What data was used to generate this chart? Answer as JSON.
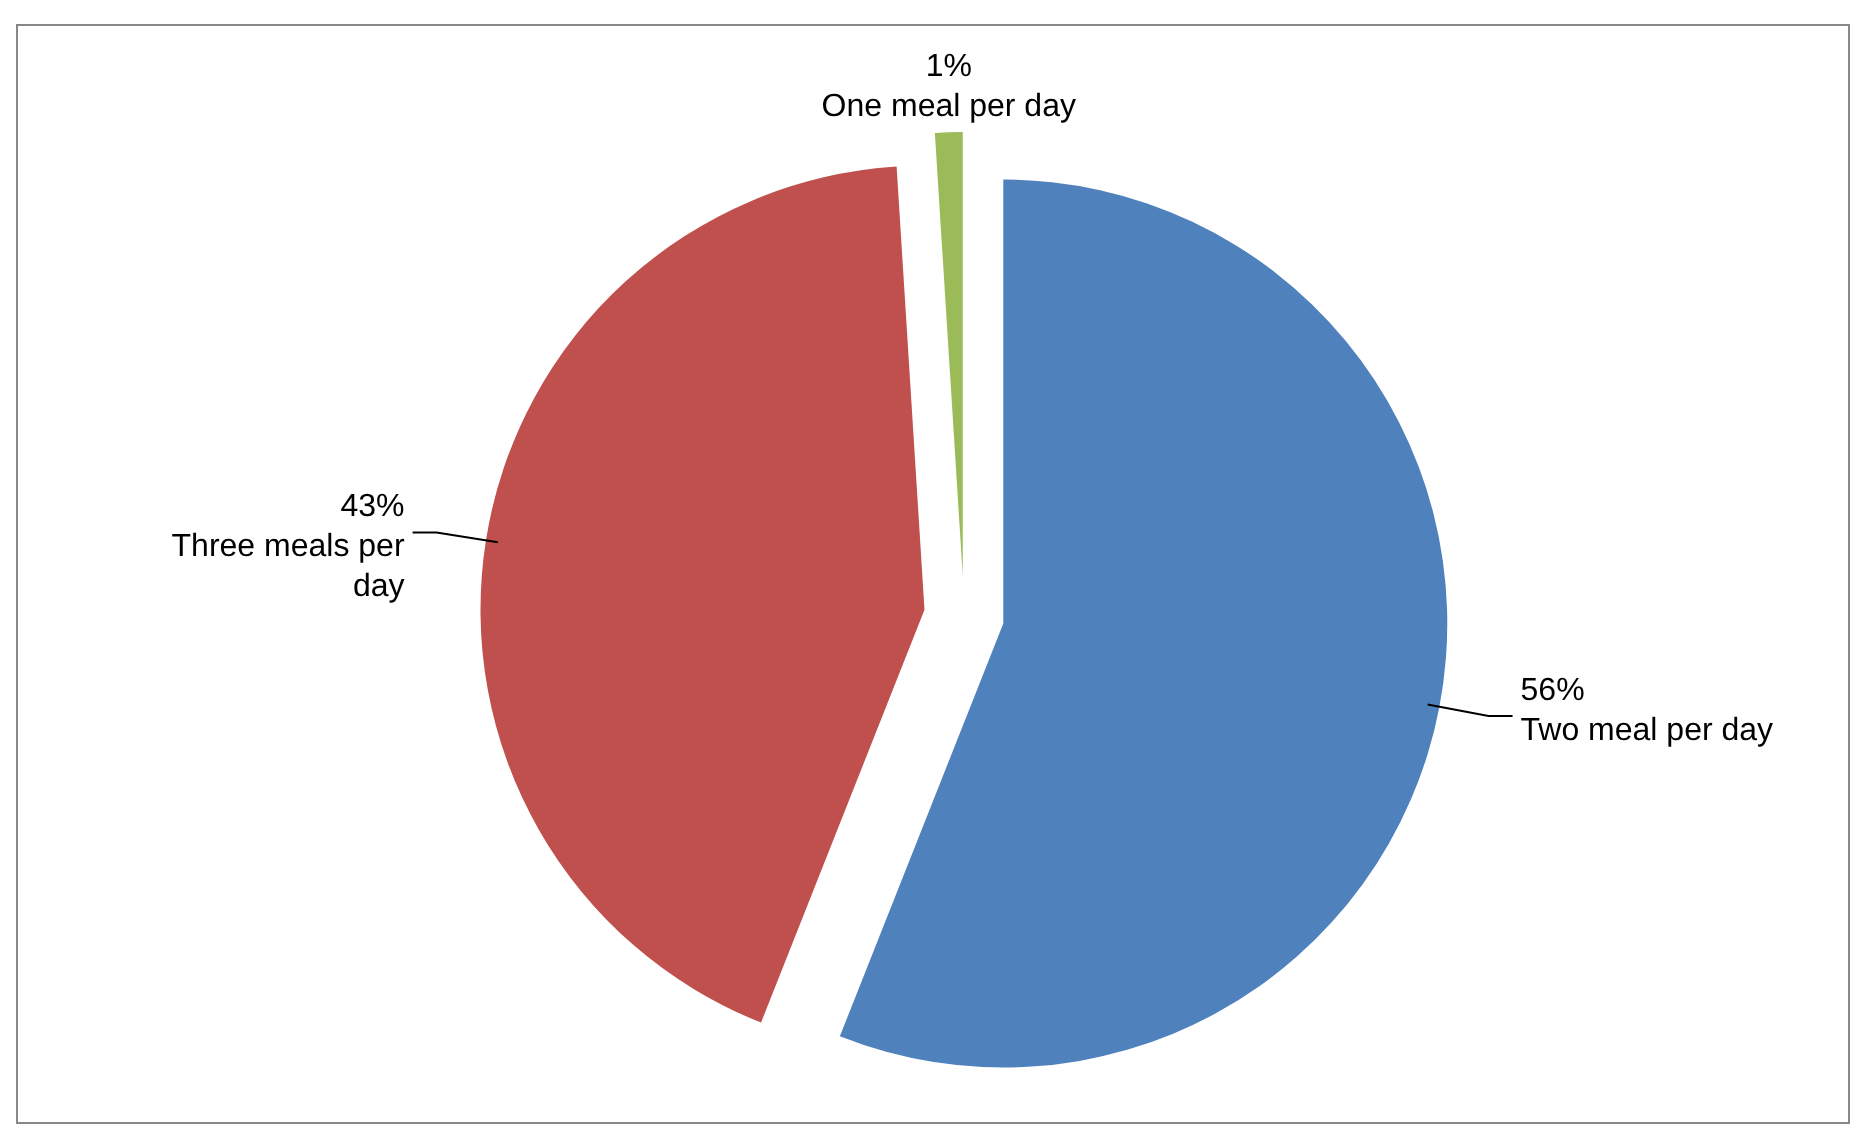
{
  "chart_data": {
    "type": "pie",
    "categories": [
      "Two meal per day",
      "Three meals per day",
      "One meal per day"
    ],
    "values": [
      56,
      43,
      1
    ],
    "value_labels": [
      "56%",
      "43%",
      "1%"
    ],
    "colors": [
      "#4f81bd",
      "#c0504d",
      "#9bbb59"
    ]
  }
}
